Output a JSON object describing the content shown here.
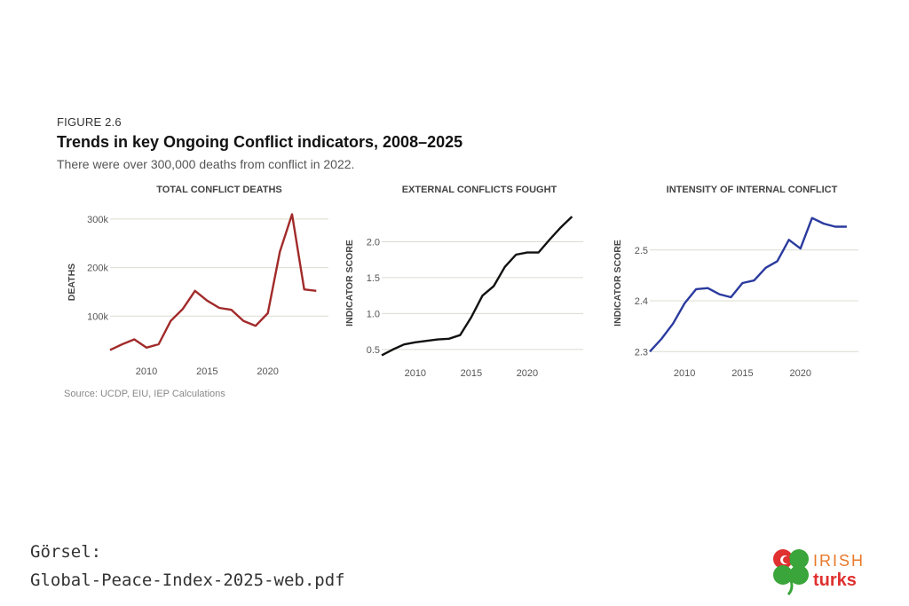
{
  "figure": {
    "label": "FIGURE 2.6",
    "title": "Trends in key Ongoing Conflict indicators, 2008–2025",
    "subtitle": "There were over 300,000 deaths from conflict in 2022.",
    "source": "Source: UCDP, EIU, IEP Calculations"
  },
  "credit": {
    "line1": "Görsel:",
    "line2": "Global-Peace-Index-2025-web.pdf"
  },
  "logo": {
    "word1": "IRISH",
    "word2": "turks",
    "colors": {
      "shamrock": "#3aa53a",
      "heart": "#e03030",
      "irish": "#e8792b",
      "turks": "#e03030"
    }
  },
  "chart_data": [
    {
      "type": "line",
      "title": "TOTAL CONFLICT DEATHS",
      "ylabel": "DEATHS",
      "color": "#a22a2a",
      "xlim": [
        2007,
        2025
      ],
      "ylim": [
        20000,
        320000
      ],
      "xticks": [
        2010,
        2015,
        2020
      ],
      "xtick_labels": [
        "2010",
        "2015",
        "2020"
      ],
      "yticks": [
        100000,
        200000,
        300000
      ],
      "ytick_labels": [
        "100k",
        "200k",
        "300k"
      ],
      "grid": true,
      "x": [
        2007,
        2008,
        2009,
        2010,
        2011,
        2012,
        2013,
        2014,
        2015,
        2016,
        2017,
        2018,
        2019,
        2020,
        2021,
        2022,
        2023,
        2024
      ],
      "y": [
        30000,
        42000,
        52000,
        35000,
        42000,
        90000,
        115000,
        152000,
        132000,
        117000,
        113000,
        90000,
        80000,
        106000,
        233000,
        310000,
        155000,
        152000
      ]
    },
    {
      "type": "line",
      "title": "EXTERNAL CONFLICTS FOUGHT",
      "ylabel": "INDICATOR SCORE",
      "color": "#111111",
      "xlim": [
        2007,
        2025
      ],
      "ylim": [
        0.4,
        2.45
      ],
      "xticks": [
        2010,
        2015,
        2020
      ],
      "xtick_labels": [
        "2010",
        "2015",
        "2020"
      ],
      "yticks": [
        0.5,
        1.0,
        1.5,
        2.0
      ],
      "ytick_labels": [
        "0.5",
        "1.0",
        "1.5",
        "2.0"
      ],
      "grid": true,
      "x": [
        2007,
        2008,
        2009,
        2010,
        2011,
        2012,
        2013,
        2014,
        2015,
        2016,
        2017,
        2018,
        2019,
        2020,
        2021,
        2022,
        2023,
        2024
      ],
      "y": [
        0.42,
        0.5,
        0.57,
        0.6,
        0.62,
        0.64,
        0.65,
        0.7,
        0.95,
        1.25,
        1.38,
        1.65,
        1.82,
        1.85,
        1.85,
        2.03,
        2.2,
        2.35
      ]
    },
    {
      "type": "line",
      "title": "INTENSITY OF INTERNAL CONFLICT",
      "ylabel": "INDICATOR SCORE",
      "color": "#2a3a9e",
      "xlim": [
        2007,
        2025
      ],
      "ylim": [
        2.29,
        2.58
      ],
      "xticks": [
        2010,
        2015,
        2020
      ],
      "xtick_labels": [
        "2010",
        "2015",
        "2020"
      ],
      "yticks": [
        2.3,
        2.4,
        2.5
      ],
      "ytick_labels": [
        "2.3",
        "2.4",
        "2.5"
      ],
      "grid": true,
      "x": [
        2007,
        2008,
        2009,
        2010,
        2011,
        2012,
        2013,
        2014,
        2015,
        2016,
        2017,
        2018,
        2019,
        2020,
        2021,
        2022,
        2023,
        2024
      ],
      "y": [
        2.3,
        2.325,
        2.355,
        2.395,
        2.423,
        2.425,
        2.413,
        2.407,
        2.435,
        2.44,
        2.465,
        2.478,
        2.52,
        2.503,
        2.563,
        2.552,
        2.546,
        2.546
      ]
    }
  ]
}
